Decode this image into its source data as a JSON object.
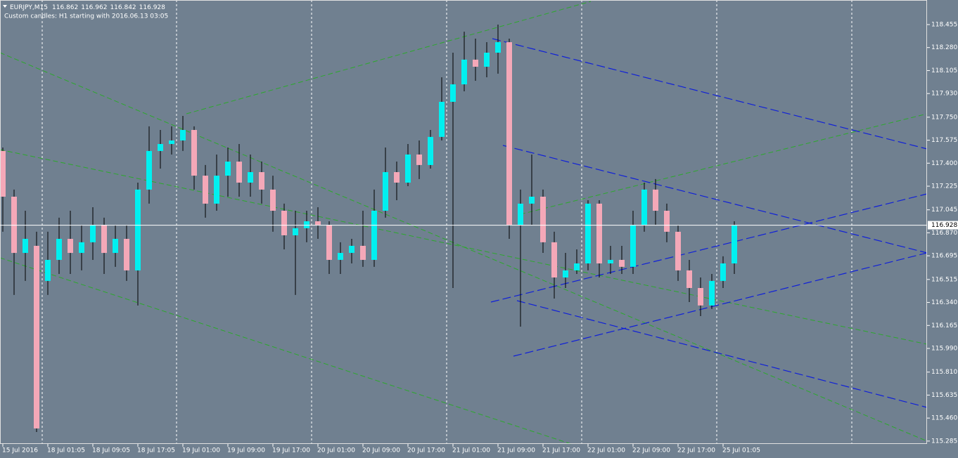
{
  "chart_data": {
    "type": "candlestick",
    "symbol": "EURJPY,M15",
    "ohlc": [
      116.862,
      116.962,
      116.842,
      116.928
    ],
    "note": "Custom candles: H1 starting with 2016.06.13 03:05",
    "current_price": 116.928,
    "background": "#708090",
    "up_color": "#00f0f0",
    "down_color": "#f4a8b8",
    "wick_color": "#000000",
    "categories": [
      null,
      null,
      null,
      null,
      null,
      null,
      null,
      null,
      null,
      null,
      null,
      null,
      null,
      null,
      null,
      null,
      null,
      null,
      null,
      null,
      null,
      null,
      null,
      null,
      null,
      null,
      null,
      null,
      null,
      null,
      null,
      null,
      null,
      null,
      null,
      null,
      null,
      null,
      null,
      null,
      null,
      null,
      null,
      null,
      null,
      null,
      null,
      null,
      null,
      null,
      null,
      null,
      null,
      null,
      null,
      null,
      null,
      null,
      null,
      null,
      null,
      null,
      null,
      null,
      null,
      null
    ],
    "open": [
      117.493,
      117.145,
      116.717,
      116.771,
      116.504,
      116.664,
      116.824,
      116.717,
      116.798,
      116.931,
      116.717,
      116.824,
      116.584,
      117.199,
      117.493,
      117.546,
      117.573,
      117.653,
      117.305,
      117.092,
      117.305,
      117.412,
      117.252,
      117.332,
      117.199,
      117.038,
      116.851,
      116.905,
      116.958,
      116.931,
      116.664,
      116.717,
      116.771,
      116.664,
      117.038,
      117.332,
      117.252,
      117.466,
      117.386,
      117.6,
      117.867,
      118.0,
      118.188,
      118.134,
      118.241,
      118.321,
      116.931,
      117.092,
      117.145,
      116.798,
      116.53,
      116.584,
      116.637,
      117.092,
      116.637,
      116.664,
      116.611,
      116.931,
      117.199,
      117.038,
      116.878,
      116.584,
      116.45,
      116.317,
      116.504,
      116.637
    ],
    "high": [
      117.519,
      117.199,
      117.038,
      116.878,
      116.878,
      116.985,
      117.038,
      116.931,
      117.065,
      116.985,
      116.931,
      116.931,
      117.252,
      117.68,
      117.653,
      117.68,
      117.76,
      117.68,
      117.386,
      117.466,
      117.519,
      117.546,
      117.466,
      117.412,
      117.305,
      117.092,
      117.038,
      117.038,
      117.065,
      116.958,
      116.798,
      116.824,
      117.038,
      117.199,
      117.519,
      117.412,
      117.546,
      117.573,
      117.653,
      118.054,
      118.241,
      118.401,
      118.348,
      118.321,
      118.455,
      118.348,
      117.199,
      117.466,
      117.199,
      116.878,
      116.717,
      116.744,
      117.118,
      117.118,
      116.771,
      116.771,
      117.038,
      117.252,
      117.279,
      117.092,
      116.931,
      116.664,
      116.53,
      116.557,
      116.691,
      116.958
    ],
    "low": [
      116.878,
      116.397,
      116.504,
      115.354,
      116.397,
      116.557,
      116.557,
      116.584,
      116.664,
      116.557,
      116.611,
      116.504,
      116.317,
      117.092,
      117.359,
      117.466,
      117.493,
      117.199,
      116.985,
      117.038,
      117.145,
      117.145,
      117.145,
      117.092,
      116.878,
      116.744,
      116.397,
      116.798,
      116.824,
      116.557,
      116.557,
      116.637,
      116.611,
      116.611,
      116.985,
      117.118,
      117.225,
      117.279,
      117.359,
      117.573,
      116.45,
      117.947,
      118.027,
      118.054,
      118.081,
      116.824,
      116.156,
      116.931,
      116.717,
      116.37,
      116.45,
      116.557,
      116.584,
      116.53,
      116.557,
      116.557,
      116.557,
      116.878,
      116.931,
      116.798,
      116.504,
      116.343,
      116.236,
      116.29,
      116.45,
      116.557
    ],
    "close": [
      117.145,
      116.717,
      116.824,
      115.381,
      116.664,
      116.824,
      116.717,
      116.798,
      116.931,
      116.717,
      116.824,
      116.584,
      117.199,
      117.493,
      117.546,
      117.573,
      117.653,
      117.305,
      117.092,
      117.305,
      117.412,
      117.252,
      117.332,
      117.199,
      117.038,
      116.851,
      116.905,
      116.958,
      116.931,
      116.664,
      116.717,
      116.771,
      116.664,
      117.038,
      117.332,
      117.252,
      117.466,
      117.386,
      117.6,
      117.867,
      118.0,
      118.188,
      118.134,
      118.241,
      118.321,
      116.931,
      117.092,
      117.145,
      116.798,
      116.53,
      116.584,
      116.637,
      117.092,
      116.637,
      116.664,
      116.611,
      116.931,
      117.199,
      117.038,
      116.878,
      116.584,
      116.45,
      116.317,
      116.504,
      116.637,
      116.928
    ],
    "xlim": [
      -0.25,
      82.125
    ],
    "xticks": [
      {
        "value": 0,
        "label": "15 Jul 2016"
      },
      {
        "value": 4,
        "label": "18 Jul 01:05"
      },
      {
        "value": 8,
        "label": "18 Jul 09:05"
      },
      {
        "value": 12,
        "label": "18 Jul 17:05"
      },
      {
        "value": 16,
        "label": "19 Jul 01:00"
      },
      {
        "value": 20,
        "label": "19 Jul 09:00"
      },
      {
        "value": 24,
        "label": "19 Jul 17:00"
      },
      {
        "value": 28,
        "label": "20 Jul 01:00"
      },
      {
        "value": 32,
        "label": "20 Jul 09:00"
      },
      {
        "value": 36,
        "label": "20 Jul 17:00"
      },
      {
        "value": 40,
        "label": "21 Jul 01:00"
      },
      {
        "value": 44,
        "label": "21 Jul 09:00"
      },
      {
        "value": 48,
        "label": "21 Jul 17:00"
      },
      {
        "value": 52,
        "label": "22 Jul 01:00"
      },
      {
        "value": 56,
        "label": "22 Jul 09:00"
      },
      {
        "value": 60,
        "label": "22 Jul 17:00"
      },
      {
        "value": 64,
        "label": "25 Jul 01:05"
      }
    ],
    "ylim": [
      115.263,
      118.642
    ],
    "yticks": [
      118.455,
      {
        "value": 118.28,
        "label": "118.280"
      },
      118.105,
      {
        "value": 117.93,
        "label": "117.930"
      },
      {
        "value": 117.75,
        "label": "117.750"
      },
      117.575,
      {
        "value": 117.4,
        "label": "117.400"
      },
      117.225,
      117.045,
      {
        "value": 116.87,
        "label": "116.870"
      },
      116.695,
      116.515,
      {
        "value": 116.34,
        "label": "116.340"
      },
      116.165,
      {
        "value": 115.99,
        "label": "115.990"
      },
      {
        "value": 115.81,
        "label": "115.810"
      },
      115.635,
      {
        "value": 115.46,
        "label": "115.460"
      },
      115.285
    ]
  }
}
